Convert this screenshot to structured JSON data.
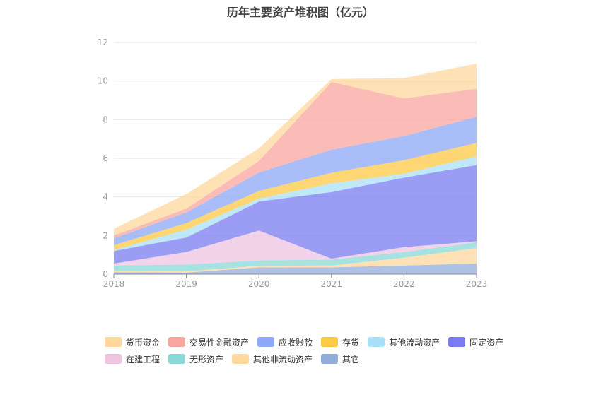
{
  "chart_data": {
    "type": "area",
    "stacked": true,
    "title": "历年主要资产堆积图（亿元）",
    "x": [
      "2018",
      "2019",
      "2020",
      "2021",
      "2022",
      "2023"
    ],
    "ylim": [
      0,
      12
    ],
    "yticks": [
      0,
      2,
      4,
      6,
      8,
      10,
      12
    ],
    "grid": true,
    "legend_position": "bottom",
    "series": [
      {
        "name": "其它",
        "color": "#93aedc",
        "values": [
          0.1,
          0.08,
          0.35,
          0.35,
          0.45,
          0.55
        ]
      },
      {
        "name": "其他非流动资产",
        "color": "#fdd79c",
        "values": [
          0.05,
          0.07,
          0.08,
          0.1,
          0.4,
          0.8
        ]
      },
      {
        "name": "无形资产",
        "color": "#8ad8d8",
        "values": [
          0.3,
          0.35,
          0.28,
          0.3,
          0.3,
          0.3
        ]
      },
      {
        "name": "在建工程",
        "color": "#eec4e1",
        "values": [
          0.1,
          0.65,
          1.55,
          0.05,
          0.25,
          0.05
        ]
      },
      {
        "name": "固定资产",
        "color": "#7a7cf0",
        "values": [
          0.65,
          0.75,
          1.5,
          3.45,
          3.6,
          3.95
        ]
      },
      {
        "name": "其他流动资产",
        "color": "#a9e0f7",
        "values": [
          0.05,
          0.4,
          0.15,
          0.45,
          0.2,
          0.45
        ]
      },
      {
        "name": "存货",
        "color": "#fdca45",
        "values": [
          0.25,
          0.35,
          0.4,
          0.55,
          0.7,
          0.7
        ]
      },
      {
        "name": "应收账款",
        "color": "#8ca8f6",
        "values": [
          0.35,
          0.55,
          0.95,
          1.2,
          1.25,
          1.35
        ]
      },
      {
        "name": "交易性金融资产",
        "color": "#f9a59f",
        "values": [
          0.15,
          0.2,
          0.6,
          3.5,
          1.95,
          1.45
        ]
      },
      {
        "name": "货币资金",
        "color": "#fdd79c",
        "values": [
          0.35,
          0.75,
          0.65,
          0.15,
          1.05,
          1.3
        ]
      }
    ]
  },
  "legend": {
    "row1": [
      {
        "label": "货币资金",
        "color": "#fdd79c"
      },
      {
        "label": "交易性金融资产",
        "color": "#f9a59f"
      },
      {
        "label": "应收账款",
        "color": "#8ca8f6"
      },
      {
        "label": "存货",
        "color": "#fdca45"
      },
      {
        "label": "其他流动资产",
        "color": "#a9e0f7"
      },
      {
        "label": "固定资产",
        "color": "#7a7cf0"
      }
    ],
    "row2": [
      {
        "label": "在建工程",
        "color": "#eec4e1"
      },
      {
        "label": "无形资产",
        "color": "#8ad8d8"
      },
      {
        "label": "其他非流动资产",
        "color": "#fdd79c"
      },
      {
        "label": "其它",
        "color": "#93aedc"
      }
    ]
  }
}
